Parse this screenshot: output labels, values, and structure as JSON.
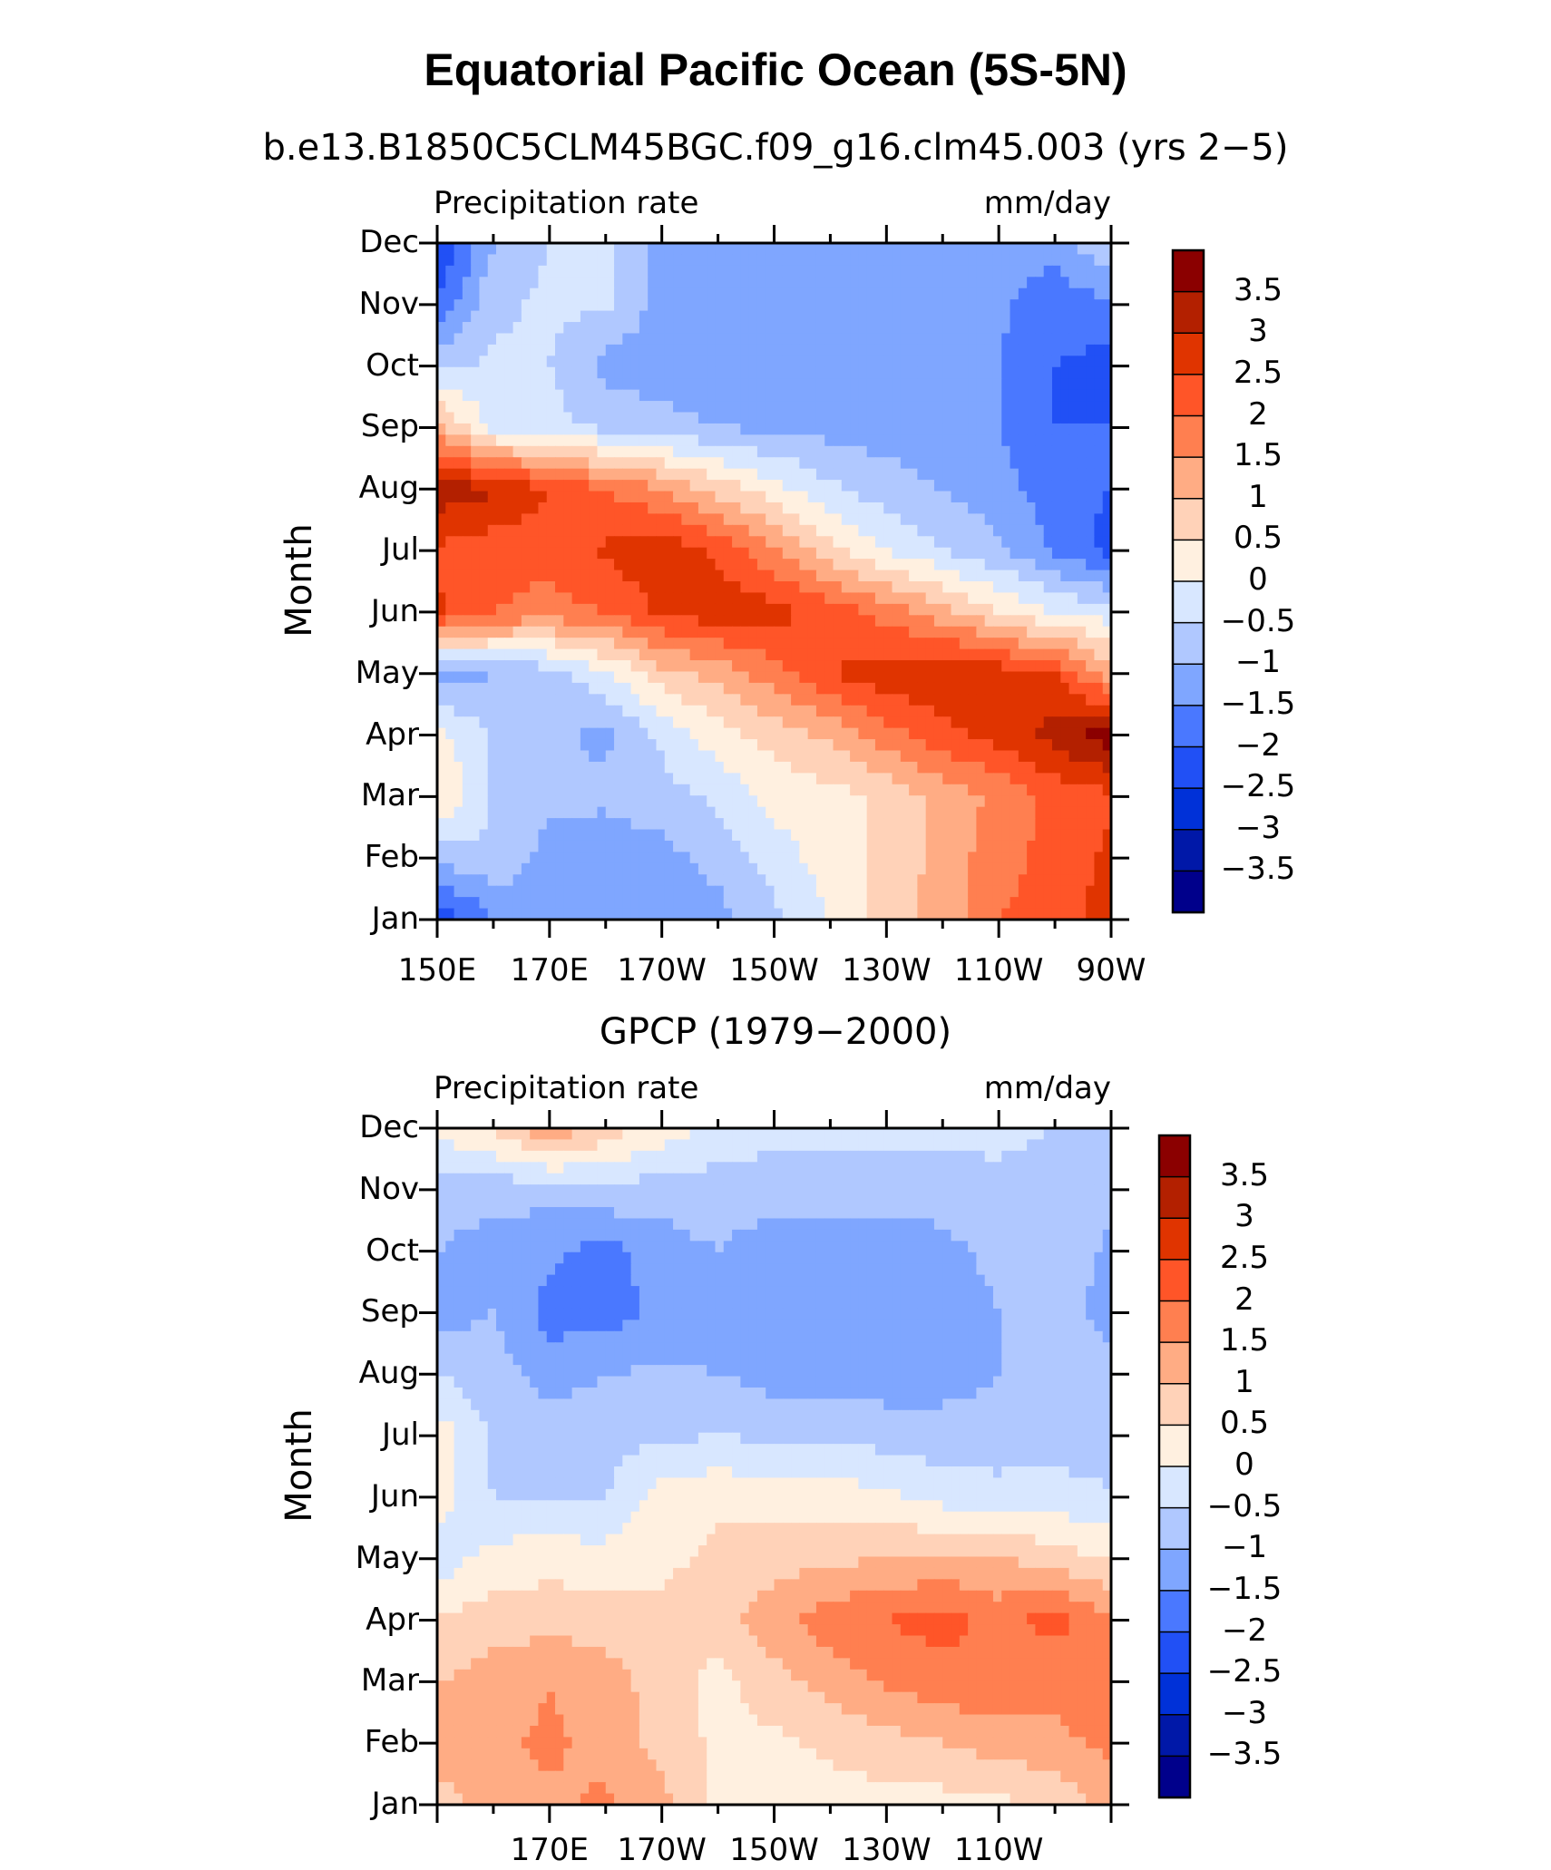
{
  "title": "Equatorial Pacific Ocean (5S-5N)",
  "colors": {
    "levels": [
      "#00008b",
      "#0018a8",
      "#0031d8",
      "#2150f5",
      "#4a78ff",
      "#7fa6ff",
      "#b0c8ff",
      "#d8e7ff",
      "#fff0e0",
      "#ffd2b8",
      "#ffac84",
      "#ff7f50",
      "#ff5528",
      "#e03400",
      "#b32000",
      "#8b0000"
    ]
  },
  "colorbar_labels": [
    "3.5",
    "3",
    "2.5",
    "2",
    "1.5",
    "1",
    "0.5",
    "0",
    "−0.5",
    "−1",
    "−1.5",
    "−2",
    "−2.5",
    "−3",
    "−3.5"
  ],
  "chart_data": [
    {
      "type": "heatmap",
      "subtitle": "b.e13.B1850C5CLM45BGC.f09_g16.clm45.003 (yrs 2−5)",
      "left_label": "Precipitation rate",
      "right_label": "mm/day",
      "ylabel": "Month",
      "xlabel": "",
      "x_ticks": [
        "150E",
        "170E",
        "170W",
        "150W",
        "130W",
        "110W",
        "90W"
      ],
      "y_ticks": [
        "Jan",
        "Feb",
        "Mar",
        "Apr",
        "May",
        "Jun",
        "Jul",
        "Aug",
        "Sep",
        "Oct",
        "Nov",
        "Dec"
      ],
      "x_range": [
        "150E",
        "90W"
      ],
      "levels": [
        -3.5,
        -3,
        -2.5,
        -2,
        -1.5,
        -1,
        -0.5,
        0,
        0.5,
        1,
        1.5,
        2,
        2.5,
        3,
        3.5
      ],
      "grid": [
        [
          -2.5,
          -1.5,
          -1.2,
          -1.2,
          -1.3,
          -1.2,
          -0.6,
          0.0,
          0.8,
          1.2,
          2.0,
          2.2,
          2.8
        ],
        [
          -0.8,
          -0.6,
          -1.2,
          -1.3,
          -1.2,
          -0.8,
          -0.3,
          0.3,
          0.6,
          1.2,
          1.8,
          2.2,
          2.6
        ],
        [
          0.6,
          -0.6,
          -0.9,
          -0.9,
          -0.7,
          -0.4,
          0.2,
          0.3,
          0.6,
          1.2,
          1.6,
          2.2,
          2.4
        ],
        [
          0.2,
          -0.6,
          -0.9,
          -1.1,
          -0.4,
          0.3,
          0.7,
          1.1,
          1.8,
          2.3,
          2.7,
          3.2,
          3.8
        ],
        [
          -1.2,
          -1.0,
          -0.8,
          -0.1,
          0.8,
          1.2,
          1.8,
          2.5,
          2.8,
          3.0,
          2.8,
          2.5,
          1.2
        ],
        [
          2.6,
          2.0,
          1.8,
          2.0,
          2.6,
          2.8,
          2.7,
          2.3,
          1.8,
          1.2,
          0.5,
          0.0,
          -0.3
        ],
        [
          2.4,
          2.2,
          2.2,
          2.6,
          2.9,
          2.4,
          1.6,
          0.7,
          0.0,
          -0.5,
          -0.9,
          -1.6,
          -2.2
        ],
        [
          3.3,
          3.1,
          2.5,
          2.0,
          1.5,
          0.8,
          0.2,
          -0.4,
          -0.8,
          -1.0,
          -1.3,
          -1.8,
          -2.0
        ],
        [
          1.2,
          -0.2,
          -0.3,
          -0.6,
          -0.8,
          -1.0,
          -1.1,
          -1.2,
          -1.2,
          -1.3,
          -1.5,
          -2.0,
          -2.0
        ],
        [
          -0.6,
          -0.4,
          -0.5,
          -1.2,
          -1.3,
          -1.4,
          -1.3,
          -1.4,
          -1.4,
          -1.4,
          -1.5,
          -2.0,
          -2.2
        ],
        [
          -2.0,
          -0.6,
          -0.4,
          -0.4,
          -1.2,
          -1.4,
          -1.3,
          -1.4,
          -1.3,
          -1.3,
          -1.4,
          -1.8,
          -1.6
        ],
        [
          -2.5,
          -1.0,
          -0.5,
          -0.3,
          -1.2,
          -1.3,
          -1.3,
          -1.3,
          -1.2,
          -1.2,
          -1.3,
          -1.3,
          -0.5
        ]
      ]
    },
    {
      "type": "heatmap",
      "subtitle": "GPCP (1979−2000)",
      "left_label": "Precipitation rate",
      "right_label": "mm/day",
      "ylabel": "Month",
      "xlabel": "",
      "x_ticks": [
        "170E",
        "170W",
        "150W",
        "130W",
        "110W"
      ],
      "y_ticks": [
        "Jan",
        "Feb",
        "Mar",
        "Apr",
        "May",
        "Jun",
        "Jul",
        "Aug",
        "Sep",
        "Oct",
        "Nov",
        "Dec"
      ],
      "levels": [
        -3.5,
        -3,
        -2.5,
        -2,
        -1.5,
        -1,
        -0.5,
        0,
        0.5,
        1,
        1.5,
        2,
        2.5,
        3,
        3.5
      ],
      "grid": [
        [
          0.8,
          1.2,
          1.4,
          1.6,
          1.2,
          0.3,
          0.2,
          0.3,
          0.3,
          0.3,
          0.4,
          0.6,
          1.2
        ],
        [
          1.2,
          1.4,
          1.6,
          1.3,
          0.8,
          0.4,
          0.4,
          0.6,
          0.8,
          1.0,
          1.2,
          1.4,
          1.6
        ],
        [
          1.0,
          1.2,
          1.5,
          1.2,
          0.8,
          0.3,
          0.8,
          1.2,
          1.6,
          1.8,
          2.0,
          1.6,
          1.8
        ],
        [
          0.5,
          0.8,
          0.8,
          0.8,
          0.6,
          0.8,
          1.3,
          1.8,
          2.0,
          2.2,
          1.8,
          2.2,
          1.6
        ],
        [
          -0.3,
          0.2,
          0.3,
          0.2,
          0.4,
          0.6,
          0.8,
          0.9,
          1.0,
          1.1,
          1.0,
          0.8,
          0.4
        ],
        [
          0.2,
          -0.5,
          -0.6,
          -0.5,
          0.2,
          0.4,
          0.2,
          0.3,
          0.1,
          -0.2,
          -0.3,
          -0.3,
          -0.4
        ],
        [
          0.3,
          -0.6,
          -0.8,
          -0.7,
          -0.6,
          -0.5,
          -0.6,
          -0.6,
          -0.7,
          -0.8,
          -0.8,
          -0.7,
          -0.9
        ],
        [
          -0.5,
          -0.8,
          -1.2,
          -1.0,
          -0.9,
          -1.0,
          -1.2,
          -1.3,
          -1.3,
          -1.2,
          -1.0,
          -0.7,
          -0.8
        ],
        [
          -1.2,
          -1.0,
          -1.7,
          -1.8,
          -1.3,
          -1.2,
          -1.4,
          -1.3,
          -1.3,
          -1.4,
          -1.0,
          -0.8,
          -1.2
        ],
        [
          -1.0,
          -1.2,
          -1.4,
          -1.7,
          -1.2,
          -1.0,
          -1.3,
          -1.3,
          -1.3,
          -1.2,
          -0.8,
          -0.7,
          -1.1
        ],
        [
          -0.8,
          -0.8,
          -0.8,
          -0.6,
          -0.8,
          -0.7,
          -0.8,
          -0.8,
          -0.8,
          -0.7,
          -0.6,
          -0.7,
          -0.9
        ],
        [
          0.2,
          0.6,
          1.5,
          0.8,
          0.3,
          -0.2,
          -0.3,
          -0.3,
          -0.3,
          -0.4,
          -0.4,
          -0.5,
          -0.6
        ]
      ]
    }
  ]
}
